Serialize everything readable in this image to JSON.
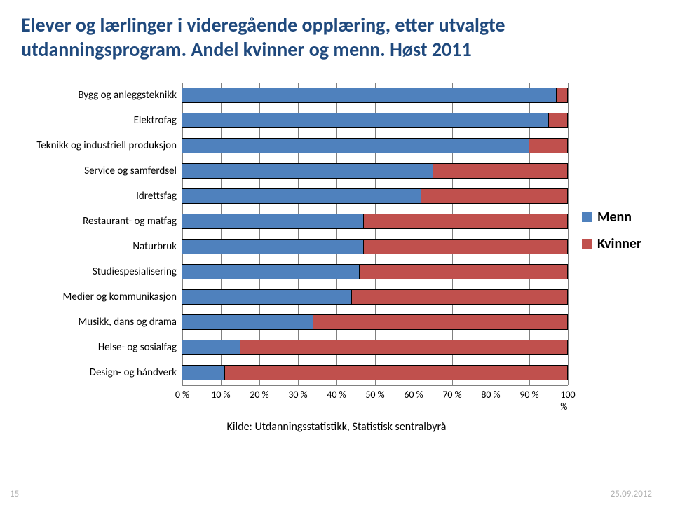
{
  "title_line1": "Elever og lærlinger i videregående opplæring, etter utvalgte",
  "title_line2": "utdanningsprogram. Andel kvinner og menn. Høst 2011",
  "chart": {
    "type": "stacked-bar-horizontal",
    "xlim": [
      0,
      100
    ],
    "xtick_step": 10,
    "tick_suffix": " %",
    "background_color": "#ffffff",
    "grid_color": "#808080",
    "bar_border_color": "#000000",
    "categories": [
      "Bygg og anleggsteknikk",
      "Elektrofag",
      "Teknikk og industriell produksjon",
      "Service og samferdsel",
      "Idrettsfag",
      "Restaurant- og matfag",
      "Naturbruk",
      "Studiespesialisering",
      "Medier og kommunikasjon",
      "Musikk, dans og drama",
      "Helse- og sosialfag",
      "Design- og håndverk"
    ],
    "series": [
      {
        "name": "Menn",
        "color": "#4f81bd",
        "values": [
          97,
          95,
          90,
          65,
          62,
          47,
          47,
          46,
          44,
          34,
          15,
          11
        ]
      },
      {
        "name": "Kvinner",
        "color": "#c0504d",
        "values": [
          3,
          5,
          10,
          35,
          38,
          53,
          53,
          54,
          56,
          66,
          85,
          89
        ]
      }
    ],
    "label_fontsize": 15,
    "tick_fontsize": 14
  },
  "legend": {
    "items": [
      {
        "label": "Menn",
        "color": "#4f81bd"
      },
      {
        "label": "Kvinner",
        "color": "#c0504d"
      }
    ],
    "fontsize": 20
  },
  "source": "Kilde: Utdanningsstatistikk, Statistisk sentralbyrå",
  "footer": {
    "page": "15",
    "date": "25.09.2012"
  }
}
